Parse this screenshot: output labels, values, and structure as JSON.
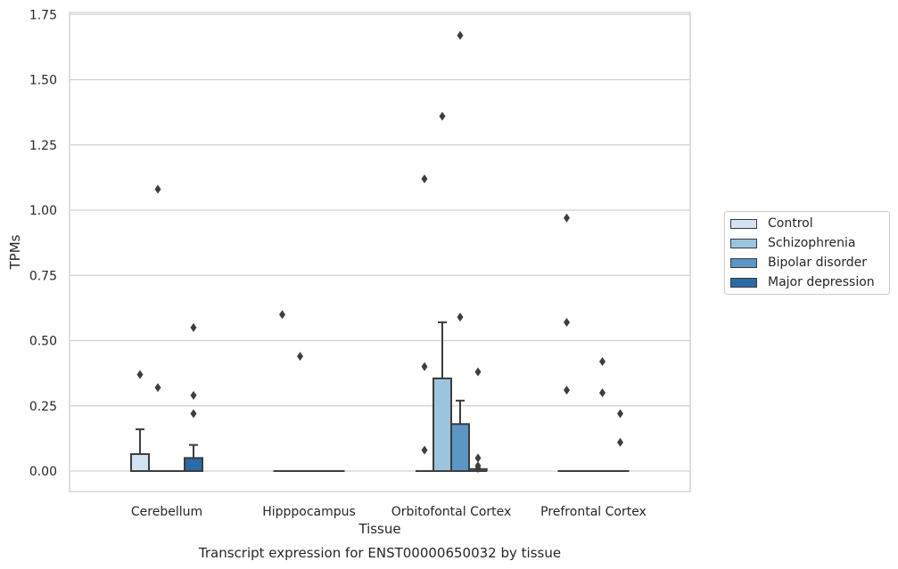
{
  "chart_data": {
    "type": "box",
    "title": "Transcript expression for ENST00000650032 by tissue",
    "xlabel": "Tissue",
    "ylabel": "TPMs",
    "ylim": [
      -0.08,
      1.76
    ],
    "yticks": [
      0.0,
      0.25,
      0.5,
      0.75,
      1.0,
      1.25,
      1.5,
      1.75
    ],
    "ytick_labels": [
      "0.00",
      "0.25",
      "0.50",
      "0.75",
      "1.00",
      "1.25",
      "1.50",
      "1.75"
    ],
    "grid": "horizontal",
    "legend_position": "right",
    "categories": [
      "Cerebellum",
      "Hipppocampus",
      "Orbitofontal Cortex",
      "Prefrontal Cortex"
    ],
    "series": [
      {
        "name": "Control",
        "color": "#d3e3f2",
        "boxes": [
          {
            "q1": 0.0,
            "median": 0.0,
            "q3": 0.065,
            "whisker_low": 0.0,
            "whisker_high": 0.16,
            "outliers": [
              0.37
            ]
          },
          {
            "q1": 0.0,
            "median": 0.0,
            "q3": 0.0,
            "whisker_low": 0.0,
            "whisker_high": 0.0,
            "outliers": [
              0.6
            ]
          },
          {
            "q1": 0.0,
            "median": 0.0,
            "q3": 0.0,
            "whisker_low": 0.0,
            "whisker_high": 0.0,
            "outliers": [
              0.08,
              0.4,
              1.12
            ]
          },
          {
            "q1": 0.0,
            "median": 0.0,
            "q3": 0.0,
            "whisker_low": 0.0,
            "whisker_high": 0.0,
            "outliers": [
              0.31,
              0.57,
              0.97
            ]
          }
        ]
      },
      {
        "name": "Schizophrenia",
        "color": "#9cc4de",
        "boxes": [
          {
            "q1": 0.0,
            "median": 0.0,
            "q3": 0.0,
            "whisker_low": 0.0,
            "whisker_high": 0.0,
            "outliers": [
              0.32,
              1.08
            ]
          },
          {
            "q1": 0.0,
            "median": 0.0,
            "q3": 0.0,
            "whisker_low": 0.0,
            "whisker_high": 0.0,
            "outliers": [
              0.44
            ]
          },
          {
            "q1": 0.0,
            "median": 0.0,
            "q3": 0.355,
            "whisker_low": 0.0,
            "whisker_high": 0.57,
            "outliers": [
              1.36
            ]
          },
          {
            "q1": 0.0,
            "median": 0.0,
            "q3": 0.0,
            "whisker_low": 0.0,
            "whisker_high": 0.0,
            "outliers": []
          }
        ]
      },
      {
        "name": "Bipolar disorder",
        "color": "#5b96c4",
        "boxes": [
          {
            "q1": 0.0,
            "median": 0.0,
            "q3": 0.0,
            "whisker_low": 0.0,
            "whisker_high": 0.0,
            "outliers": []
          },
          {
            "q1": 0.0,
            "median": 0.0,
            "q3": 0.0,
            "whisker_low": 0.0,
            "whisker_high": 0.0,
            "outliers": []
          },
          {
            "q1": 0.0,
            "median": 0.0,
            "q3": 0.18,
            "whisker_low": 0.0,
            "whisker_high": 0.27,
            "outliers": [
              0.59,
              1.67
            ]
          },
          {
            "q1": 0.0,
            "median": 0.0,
            "q3": 0.0,
            "whisker_low": 0.0,
            "whisker_high": 0.0,
            "outliers": [
              0.3,
              0.42
            ]
          }
        ]
      },
      {
        "name": "Major depression",
        "color": "#2a6aa6",
        "boxes": [
          {
            "q1": 0.0,
            "median": 0.0,
            "q3": 0.05,
            "whisker_low": 0.0,
            "whisker_high": 0.1,
            "outliers": [
              0.22,
              0.29,
              0.55
            ]
          },
          {
            "q1": 0.0,
            "median": 0.0,
            "q3": 0.0,
            "whisker_low": 0.0,
            "whisker_high": 0.0,
            "outliers": []
          },
          {
            "q1": 0.0,
            "median": 0.0,
            "q3": 0.005,
            "whisker_low": 0.0,
            "whisker_high": 0.005,
            "outliers": [
              0.01,
              0.02,
              0.05,
              0.38
            ]
          },
          {
            "q1": 0.0,
            "median": 0.0,
            "q3": 0.0,
            "whisker_low": 0.0,
            "whisker_high": 0.0,
            "outliers": [
              0.11,
              0.22
            ]
          }
        ]
      }
    ]
  }
}
